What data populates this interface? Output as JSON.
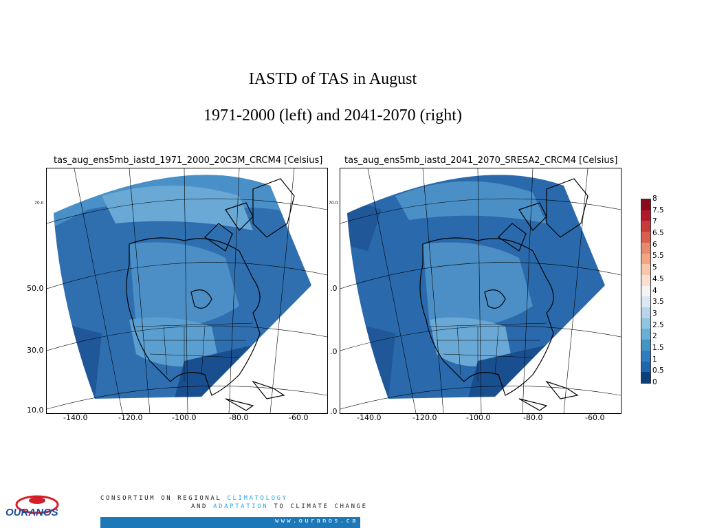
{
  "slide": {
    "title_line1": "IASTD of TAS in August",
    "title_line2": "1971-2000 (left) and 2041-2070 (right)"
  },
  "left_map": {
    "title": "tas_aug_ens5mb_iastd_1971_2000_20C3M_CRCM4 [Celsius]",
    "lat_labels": [
      "70.0",
      "50.0",
      "30.0",
      "10.0"
    ],
    "lon_labels": [
      "-140.0",
      "-120.0",
      "-100.0",
      "-80.0",
      "-60.0"
    ]
  },
  "right_map": {
    "title": "tas_aug_ens5mb_iastd_2041_2070_SRESA2_CRCM4 [Celsius]",
    "lat_labels": [
      "70.0",
      ".0",
      ".0",
      ".0"
    ],
    "lon_labels": [
      "-140.0",
      "-120.0",
      "-100.0",
      "-80.0",
      "-60.0"
    ]
  },
  "colorbar": {
    "labels": [
      "8",
      "7.5",
      "7",
      "6.5",
      "6",
      "5.5",
      "5",
      "4.5",
      "4",
      "3.5",
      "3",
      "2.5",
      "2",
      "1.5",
      "1",
      "0.5",
      "0"
    ],
    "colors": [
      "#8b0a1a",
      "#b2182b",
      "#c93a3a",
      "#d6604d",
      "#e68a6e",
      "#f4a582",
      "#f8c6aa",
      "#fbe0d0",
      "#f4f4f4",
      "#dbe8f2",
      "#b7d4ea",
      "#92c5de",
      "#6baed6",
      "#4393c3",
      "#2f7dbf",
      "#2166ac",
      "#0d3f7a"
    ]
  },
  "footer": {
    "logo_text": "OURANOS",
    "line1_a": "CONSORTIUM ON REGIONAL",
    "line1_b": "CLIMATOLOGY",
    "line2_a": "AND",
    "line2_b": "ADAPTATION",
    "line2_c": "TO CLIMATE CHANGE",
    "url": "www.ouranos.ca",
    "accent_color": "#29a8e0",
    "bar_color": "#1e78b8"
  }
}
